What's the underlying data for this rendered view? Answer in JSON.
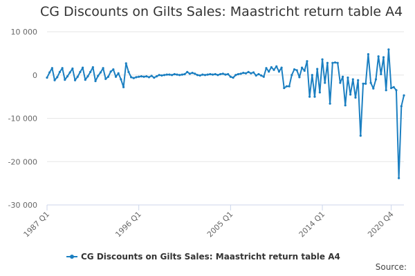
{
  "title": "CG Discounts on Gilts Sales: Maastricht return table A4",
  "source": "Source:",
  "colors": {
    "series": "#1b7fc1",
    "grid": "#e6e6e6",
    "axis": "#ccd6eb",
    "text": "#333333",
    "tick_label": "#666666"
  },
  "chart_data": {
    "type": "line",
    "title": "CG Discounts on Gilts Sales: Maastricht return table A4",
    "xlabel": "",
    "ylabel": "",
    "ylim": [
      -30000,
      10000
    ],
    "yticks": [
      10000,
      0,
      -10000,
      -20000,
      -30000
    ],
    "ytick_labels": [
      "10 000",
      "0",
      "-10 000",
      "-20 000",
      "-30 000"
    ],
    "xtick_labels": [
      "1987 Q1",
      "1996 Q1",
      "2005 Q1",
      "2014 Q1",
      "2020 Q4"
    ],
    "xtick_index": [
      0,
      36,
      72,
      108,
      135
    ],
    "grid": true,
    "legend_position": "bottom-center",
    "series": [
      {
        "name": "CG Discounts on Gilts Sales: Maastricht return table A4",
        "values": [
          -600,
          600,
          1600,
          -1200,
          -500,
          700,
          1600,
          -1100,
          -300,
          600,
          1500,
          -1200,
          -400,
          700,
          1700,
          -1100,
          -300,
          700,
          1800,
          -1400,
          -200,
          600,
          1600,
          -900,
          -400,
          800,
          1300,
          -400,
          400,
          -1000,
          -2800,
          2700,
          700,
          -500,
          -700,
          -500,
          -400,
          -300,
          -400,
          -300,
          -500,
          -200,
          -600,
          -300,
          0,
          -100,
          0,
          100,
          100,
          0,
          200,
          100,
          0,
          100,
          200,
          700,
          300,
          500,
          300,
          0,
          -100,
          100,
          0,
          100,
          200,
          100,
          200,
          0,
          200,
          300,
          100,
          200,
          -400,
          -600,
          0,
          200,
          300,
          500,
          400,
          700,
          400,
          600,
          -100,
          200,
          -100,
          -400,
          1600,
          800,
          1800,
          1200,
          2000,
          800,
          1700,
          -3000,
          -2600,
          -2600,
          0,
          1300,
          1100,
          -500,
          1700,
          1000,
          3200,
          -5000,
          0,
          -5000,
          1400,
          -4000,
          3600,
          -1800,
          2800,
          -6600,
          2800,
          2900,
          2800,
          -1800,
          -400,
          -7000,
          -600,
          -4500,
          -1000,
          -5200,
          -1200,
          -14000,
          -2000,
          -2000,
          4800,
          -1800,
          -3100,
          -1000,
          4300,
          200,
          4100,
          -3500,
          5900,
          -3000,
          -2800,
          -3500,
          -23800,
          -7200,
          -4700
        ]
      }
    ]
  }
}
